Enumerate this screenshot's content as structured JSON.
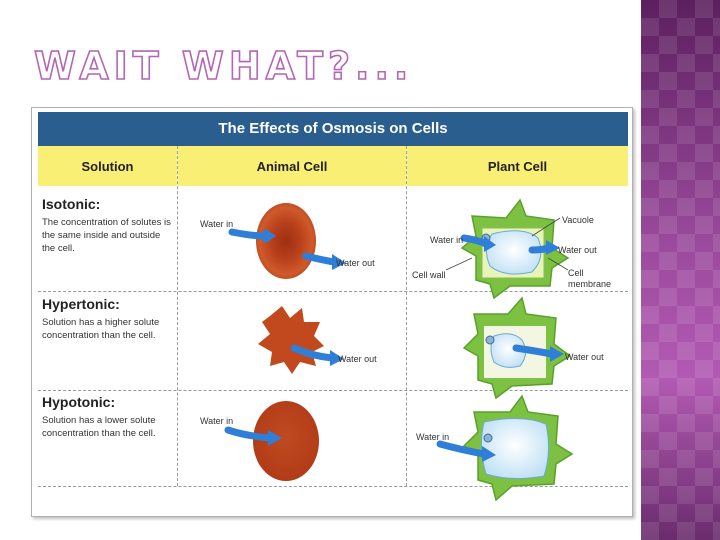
{
  "slide": {
    "title": "WAIT WHAT?..."
  },
  "figure": {
    "title": "The Effects of Osmosis on Cells",
    "headers": {
      "solution": "Solution",
      "animal": "Animal Cell",
      "plant": "Plant Cell"
    },
    "rows": [
      {
        "name": "Isotonic:",
        "description": "The concentration of solutes is the same inside and outside the cell.",
        "animal_labels": [
          "Water in",
          "Water out"
        ],
        "plant_labels": [
          "Vacuole",
          "Water in",
          "Water out",
          "Cell wall",
          "Cell membrane"
        ]
      },
      {
        "name": "Hypertonic:",
        "description": "Solution has a higher solute concentration than the cell.",
        "animal_labels": [
          "Water out"
        ],
        "plant_labels": [
          "Water out"
        ]
      },
      {
        "name": "Hypotonic:",
        "description": "Solution has a lower solute concentration than the cell.",
        "animal_labels": [
          "Water in"
        ],
        "plant_labels": [
          "Water in"
        ]
      }
    ]
  },
  "colors": {
    "header_bar": "#2a5e8f",
    "header_row": "#f9ef74",
    "red_cell": "#c0431b",
    "plant_wall": "#7dc142",
    "vacuole": "#cfe8f7",
    "arrow": "#2f7fd8"
  }
}
